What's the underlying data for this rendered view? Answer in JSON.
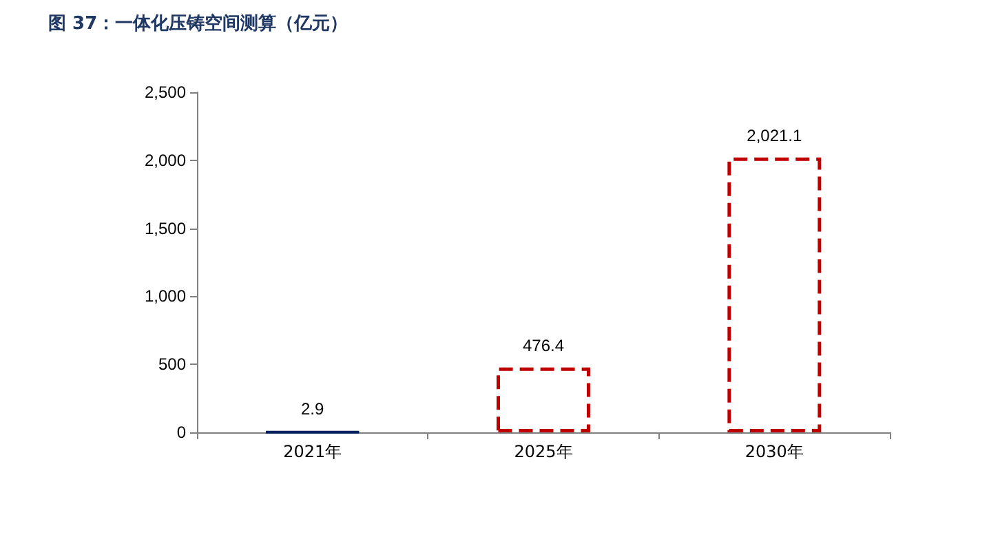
{
  "chart_data": {
    "type": "bar",
    "title": "图 37：一体化压铸空间测算（亿元）",
    "categories": [
      "2021年",
      "2025年",
      "2030年"
    ],
    "stacked": true,
    "grid": false,
    "ylim": [
      0,
      2500
    ],
    "yticks": [
      0,
      500,
      {
        "value": 1000,
        "label": "1,000"
      },
      {
        "value": 1500,
        "label": "1,500"
      },
      {
        "value": 2000,
        "label": "2,000"
      },
      {
        "value": 2500,
        "label": "2,500"
      }
    ],
    "series": [
      {
        "color": "#002060",
        "values": [
          2.9,
          null,
          null
        ],
        "value_labels": [
          "2.9",
          null,
          null
        ]
      },
      {
        "color": "#c00000",
        "line_style": "dashed",
        "values": [
          null,
          476.4,
          2021.1
        ],
        "value_labels": [
          null,
          "476.4",
          "2,021.1"
        ]
      }
    ]
  }
}
